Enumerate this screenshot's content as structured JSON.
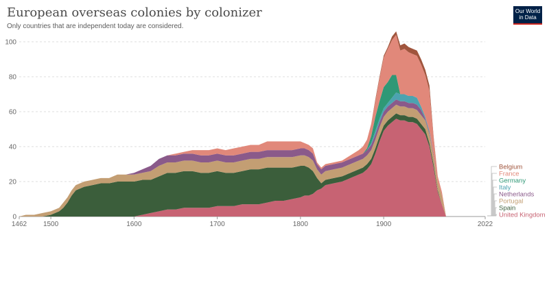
{
  "title": "European overseas colonies by colonizer",
  "subtitle": "Only countries that are independent today are considered.",
  "logo": {
    "line1": "Our World",
    "line2": "in Data",
    "bg_color": "#002147",
    "accent_color": "#ce261e"
  },
  "chart_data": {
    "type": "area",
    "stacked": true,
    "title": "European overseas colonies by colonizer",
    "subtitle": "Only countries that are independent today are considered.",
    "xlabel": "",
    "ylabel": "",
    "xlim": [
      1462,
      2022
    ],
    "ylim": [
      0,
      100
    ],
    "y_ticks": [
      0,
      20,
      40,
      60,
      80,
      100
    ],
    "x_ticks": [
      1462,
      1500,
      1600,
      1700,
      1800,
      1900,
      2022
    ],
    "grid": "horizontal dashed",
    "legend_position": "right, aligned to area ends",
    "x": [
      1462,
      1470,
      1480,
      1490,
      1500,
      1510,
      1515,
      1520,
      1525,
      1530,
      1540,
      1550,
      1560,
      1570,
      1580,
      1590,
      1600,
      1610,
      1620,
      1630,
      1640,
      1650,
      1660,
      1670,
      1680,
      1690,
      1700,
      1710,
      1720,
      1730,
      1740,
      1750,
      1760,
      1770,
      1780,
      1790,
      1800,
      1805,
      1810,
      1815,
      1820,
      1825,
      1830,
      1840,
      1850,
      1860,
      1870,
      1875,
      1880,
      1885,
      1890,
      1895,
      1900,
      1905,
      1910,
      1915,
      1920,
      1925,
      1930,
      1935,
      1940,
      1945,
      1950,
      1955,
      1960,
      1965,
      1970,
      1975,
      1980,
      1990,
      2000,
      2010,
      2022
    ],
    "series": [
      {
        "name": "United Kingdom",
        "color": "#c76373",
        "values": [
          0,
          0,
          0,
          0,
          0,
          0,
          0,
          0,
          0,
          0,
          0,
          0,
          0,
          0,
          0,
          0,
          0,
          1,
          2,
          3,
          4,
          4,
          5,
          5,
          5,
          5,
          6,
          6,
          6,
          7,
          7,
          7,
          8,
          9,
          9,
          10,
          11,
          12,
          12,
          13,
          15,
          16,
          18,
          19,
          20,
          22,
          24,
          25,
          27,
          30,
          36,
          43,
          49,
          52,
          54,
          56,
          55,
          55,
          54,
          54,
          53,
          50,
          47,
          40,
          28,
          14,
          7,
          0,
          0,
          0,
          0,
          0,
          0
        ]
      },
      {
        "name": "Spain",
        "color": "#3b5e3b",
        "values": [
          0,
          0,
          0,
          0,
          1,
          3,
          5,
          8,
          12,
          15,
          17,
          18,
          19,
          19,
          20,
          20,
          20,
          20,
          19,
          20,
          21,
          21,
          21,
          21,
          20,
          20,
          20,
          19,
          19,
          19,
          20,
          20,
          20,
          19,
          19,
          18,
          18,
          17,
          16,
          13,
          7,
          3,
          3,
          3,
          3,
          3,
          3,
          3,
          3,
          3,
          3,
          3,
          3,
          3,
          3,
          3,
          3,
          3,
          3,
          3,
          3,
          3,
          3,
          2,
          2,
          1,
          0,
          0,
          0,
          0,
          0,
          0,
          0
        ]
      },
      {
        "name": "Portugal",
        "color": "#c39e73",
        "values": [
          0,
          1,
          1,
          2,
          2,
          2,
          3,
          3,
          3,
          3,
          3,
          3,
          3,
          3,
          4,
          4,
          4,
          4,
          5,
          6,
          6,
          6,
          6,
          6,
          6,
          6,
          6,
          6,
          6,
          6,
          6,
          6,
          6,
          6,
          6,
          6,
          6,
          6,
          6,
          6,
          5,
          5,
          5,
          5,
          5,
          5,
          5,
          5,
          5,
          5,
          5,
          5,
          5,
          5,
          5,
          5,
          5,
          5,
          5,
          5,
          5,
          5,
          5,
          5,
          5,
          5,
          5,
          0,
          0,
          0,
          0,
          0,
          0
        ]
      },
      {
        "name": "Netherlands",
        "color": "#8a5a8a",
        "values": [
          0,
          0,
          0,
          0,
          0,
          0,
          0,
          0,
          0,
          0,
          0,
          0,
          0,
          0,
          0,
          0,
          1,
          2,
          3,
          4,
          4,
          4,
          4,
          4,
          4,
          4,
          4,
          4,
          4,
          4,
          4,
          4,
          4,
          4,
          4,
          4,
          4,
          4,
          4,
          4,
          3,
          3,
          3,
          3,
          3,
          3,
          3,
          3,
          3,
          3,
          3,
          3,
          3,
          3,
          3,
          3,
          3,
          3,
          3,
          3,
          3,
          3,
          1,
          1,
          1,
          0,
          0,
          0,
          0,
          0,
          0,
          0,
          0
        ]
      },
      {
        "name": "Italy",
        "color": "#4ca3b0",
        "values": [
          0,
          0,
          0,
          0,
          0,
          0,
          0,
          0,
          0,
          0,
          0,
          0,
          0,
          0,
          0,
          0,
          0,
          0,
          0,
          0,
          0,
          0,
          0,
          0,
          0,
          0,
          0,
          0,
          0,
          0,
          0,
          0,
          0,
          0,
          0,
          0,
          0,
          0,
          0,
          0,
          0,
          0,
          0,
          0,
          0,
          0,
          0,
          0,
          0,
          1,
          2,
          2,
          2,
          2,
          3,
          4,
          4,
          4,
          4,
          4,
          4,
          2,
          1,
          1,
          0,
          0,
          0,
          0,
          0,
          0,
          0,
          0,
          0
        ]
      },
      {
        "name": "Germany",
        "color": "#2f9876",
        "values": [
          0,
          0,
          0,
          0,
          0,
          0,
          0,
          0,
          0,
          0,
          0,
          0,
          0,
          0,
          0,
          0,
          0,
          0,
          0,
          0,
          0,
          0,
          0,
          0,
          0,
          0,
          0,
          0,
          0,
          0,
          0,
          0,
          0,
          0,
          0,
          0,
          0,
          0,
          0,
          0,
          0,
          0,
          0,
          0,
          0,
          0,
          0,
          0,
          1,
          4,
          8,
          10,
          12,
          12,
          13,
          10,
          0,
          0,
          0,
          0,
          0,
          0,
          0,
          0,
          0,
          0,
          0,
          0,
          0,
          0,
          0,
          0,
          0
        ]
      },
      {
        "name": "France",
        "color": "#e1887a",
        "values": [
          0,
          0,
          0,
          0,
          0,
          0,
          0,
          0,
          0,
          0,
          0,
          0,
          0,
          0,
          0,
          0,
          0,
          0,
          0,
          0,
          0,
          1,
          1,
          2,
          3,
          3,
          3,
          3,
          4,
          4,
          4,
          4,
          5,
          5,
          5,
          5,
          4,
          3,
          3,
          3,
          1,
          1,
          1,
          1,
          1,
          2,
          3,
          4,
          5,
          7,
          9,
          13,
          17,
          19,
          20,
          23,
          25,
          26,
          25,
          24,
          24,
          24,
          24,
          23,
          9,
          3,
          2,
          0,
          0,
          0,
          0,
          0,
          0
        ]
      },
      {
        "name": "Belgium",
        "color": "#a0553d",
        "values": [
          0,
          0,
          0,
          0,
          0,
          0,
          0,
          0,
          0,
          0,
          0,
          0,
          0,
          0,
          0,
          0,
          0,
          0,
          0,
          0,
          0,
          0,
          0,
          0,
          0,
          0,
          0,
          0,
          0,
          0,
          0,
          0,
          0,
          0,
          0,
          0,
          0,
          0,
          0,
          0,
          0,
          0,
          0,
          0,
          0,
          0,
          0,
          0,
          0,
          0,
          1,
          1,
          1,
          1,
          2,
          2,
          3,
          3,
          3,
          3,
          3,
          3,
          3,
          3,
          1,
          0,
          0,
          0,
          0,
          0,
          0,
          0,
          0
        ]
      }
    ],
    "legend": [
      "Belgium",
      "France",
      "Germany",
      "Italy",
      "Netherlands",
      "Portugal",
      "Spain",
      "United Kingdom"
    ]
  }
}
